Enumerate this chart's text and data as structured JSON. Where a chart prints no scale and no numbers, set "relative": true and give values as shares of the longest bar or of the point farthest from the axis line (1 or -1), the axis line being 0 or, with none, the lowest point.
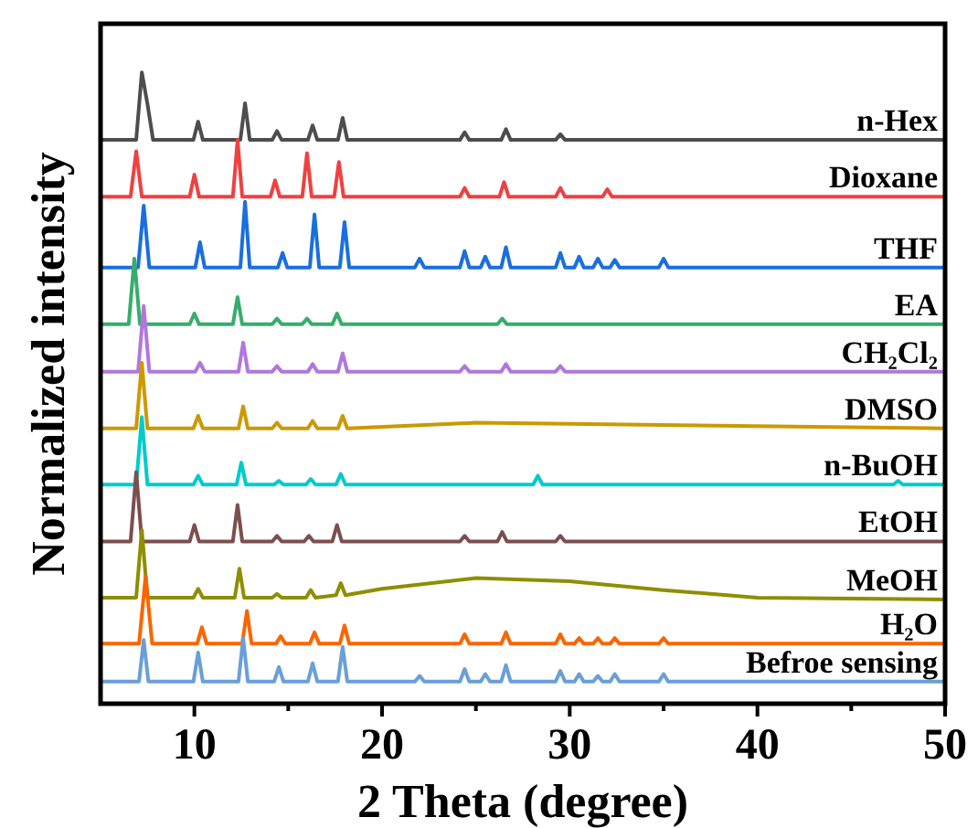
{
  "chart_data": {
    "type": "line",
    "relative": true,
    "xlabel": "2 Theta (degree)",
    "ylabel": "Normalized intensity",
    "xlim": [
      5,
      50
    ],
    "xticks": [
      10,
      {
        "value": 15,
        "label": null
      },
      20,
      {
        "value": 25,
        "label": null
      },
      30,
      {
        "value": 35,
        "label": null
      },
      40,
      {
        "value": 45,
        "label": null
      },
      50
    ],
    "series": [
      {
        "name": "n-Hex",
        "color": "#4d4d4d",
        "x": [
          5,
          6.9,
          7.2,
          7.5,
          7.8,
          9.95,
          10.2,
          10.45,
          12.45,
          12.7,
          12.95,
          14.15,
          14.4,
          14.65,
          16.05,
          16.3,
          16.55,
          17.65,
          17.9,
          18.15,
          24.15,
          24.4,
          24.65,
          26.35,
          26.6,
          26.85,
          29.25,
          29.5,
          29.75,
          50
        ],
        "values": [
          0.893,
          0.893,
          1,
          0.95,
          0.893,
          0.893,
          0.922,
          0.893,
          0.893,
          0.951,
          0.893,
          0.893,
          0.907,
          0.893,
          0.893,
          0.916,
          0.893,
          0.893,
          0.928,
          0.893,
          0.893,
          0.905,
          0.893,
          0.893,
          0.91,
          0.893,
          0.893,
          0.902,
          0.893,
          0.893
        ]
      },
      {
        "name": "Dioxane",
        "color": "#f04040",
        "x": [
          5,
          6.6,
          6.9,
          7.2,
          9.75,
          10,
          10.25,
          12.05,
          12.3,
          12.55,
          14.05,
          14.3,
          14.55,
          15.75,
          16,
          16.25,
          17.45,
          17.7,
          17.95,
          24.15,
          24.4,
          24.65,
          26.25,
          26.5,
          26.75,
          29.25,
          29.5,
          29.75,
          31.75,
          32,
          32.25,
          50
        ],
        "values": [
          0.803,
          0.803,
          0.875,
          0.803,
          0.803,
          0.838,
          0.803,
          0.803,
          0.893,
          0.803,
          0.803,
          0.829,
          0.803,
          0.803,
          0.872,
          0.803,
          0.803,
          0.858,
          0.803,
          0.803,
          0.817,
          0.803,
          0.803,
          0.826,
          0.803,
          0.803,
          0.817,
          0.803,
          0.803,
          0.815,
          0.803,
          0.803
        ]
      },
      {
        "name": "THF",
        "color": "#1a6fdf",
        "x": [
          5,
          7.0,
          7.3,
          7.6,
          10.05,
          10.3,
          10.55,
          12.45,
          12.7,
          12.95,
          14.45,
          14.7,
          14.95,
          16.15,
          16.4,
          16.65,
          17.75,
          18,
          18.25,
          21.75,
          22,
          22.25,
          24.15,
          24.4,
          24.65,
          25.25,
          25.5,
          25.75,
          26.35,
          26.6,
          26.85,
          29.25,
          29.5,
          29.75,
          30.25,
          30.5,
          30.75,
          31.25,
          31.5,
          31.75,
          32.15,
          32.4,
          32.65,
          34.75,
          35,
          35.25,
          50
        ],
        "values": [
          0.691,
          0.691,
          0.789,
          0.691,
          0.691,
          0.731,
          0.691,
          0.691,
          0.795,
          0.691,
          0.691,
          0.714,
          0.691,
          0.691,
          0.775,
          0.691,
          0.691,
          0.763,
          0.691,
          0.691,
          0.705,
          0.691,
          0.691,
          0.717,
          0.691,
          0.691,
          0.708,
          0.691,
          0.691,
          0.723,
          0.691,
          0.691,
          0.714,
          0.691,
          0.691,
          0.708,
          0.691,
          0.691,
          0.705,
          0.691,
          0.691,
          0.703,
          0.691,
          0.691,
          0.705,
          0.691,
          0.691
        ]
      },
      {
        "name": "EA",
        "color": "#37ad6b",
        "x": [
          5,
          6.5,
          6.8,
          7.1,
          9.75,
          10,
          10.25,
          12.05,
          12.3,
          12.55,
          14.15,
          14.4,
          14.65,
          15.75,
          16,
          16.25,
          17.35,
          17.6,
          17.85,
          26.15,
          26.4,
          26.65,
          50
        ],
        "values": [
          0.601,
          0.601,
          0.705,
          0.601,
          0.601,
          0.618,
          0.601,
          0.601,
          0.644,
          0.601,
          0.601,
          0.61,
          0.601,
          0.601,
          0.61,
          0.601,
          0.601,
          0.618,
          0.601,
          0.601,
          0.61,
          0.601,
          0.601
        ]
      },
      {
        "name": "CH₂Cl₂",
        "color": "#b177de",
        "x": [
          5,
          7.0,
          7.3,
          7.6,
          10.05,
          10.3,
          10.55,
          12.35,
          12.6,
          12.85,
          14.15,
          14.4,
          14.65,
          16.05,
          16.3,
          16.55,
          17.65,
          17.9,
          18.15,
          24.15,
          24.4,
          24.65,
          26.35,
          26.6,
          26.85,
          29.25,
          29.5,
          29.75,
          50
        ],
        "values": [
          0.526,
          0.526,
          0.63,
          0.526,
          0.526,
          0.54,
          0.526,
          0.526,
          0.572,
          0.526,
          0.526,
          0.535,
          0.526,
          0.526,
          0.538,
          0.526,
          0.526,
          0.555,
          0.526,
          0.526,
          0.535,
          0.526,
          0.526,
          0.538,
          0.526,
          0.526,
          0.535,
          0.526,
          0.526
        ]
      },
      {
        "name": "DMSO",
        "color": "#cc9900",
        "x": [
          5,
          6.9,
          7.2,
          7.5,
          9.95,
          10.2,
          10.45,
          12.35,
          12.6,
          12.85,
          14.15,
          14.4,
          14.65,
          16.05,
          16.3,
          16.55,
          17.65,
          17.9,
          18.15,
          25,
          50
        ],
        "values": [
          0.436,
          0.436,
          0.54,
          0.436,
          0.436,
          0.456,
          0.436,
          0.436,
          0.471,
          0.436,
          0.436,
          0.445,
          0.436,
          0.436,
          0.448,
          0.436,
          0.436,
          0.456,
          0.436,
          0.445,
          0.436
        ]
      },
      {
        "name": "n-BuOH",
        "color": "#00cbcc",
        "x": [
          5,
          6.9,
          7.2,
          7.5,
          9.95,
          10.2,
          10.45,
          12.25,
          12.5,
          12.75,
          14.25,
          14.5,
          14.75,
          15.95,
          16.2,
          16.45,
          17.55,
          17.8,
          18.05,
          28.05,
          28.3,
          28.55,
          47.25,
          47.5,
          47.75,
          50
        ],
        "values": [
          0.347,
          0.347,
          0.454,
          0.347,
          0.347,
          0.361,
          0.347,
          0.347,
          0.382,
          0.347,
          0.347,
          0.353,
          0.347,
          0.347,
          0.356,
          0.347,
          0.347,
          0.364,
          0.347,
          0.347,
          0.361,
          0.347,
          0.347,
          0.353,
          0.347,
          0.347
        ]
      },
      {
        "name": "EtOH",
        "color": "#7d4e4e",
        "x": [
          5,
          6.6,
          6.9,
          7.2,
          9.75,
          10,
          10.25,
          12.05,
          12.3,
          12.55,
          14.15,
          14.4,
          14.65,
          15.85,
          16.1,
          16.35,
          17.35,
          17.6,
          17.85,
          24.15,
          24.4,
          24.65,
          26.15,
          26.4,
          26.65,
          29.25,
          29.5,
          29.75,
          50
        ],
        "values": [
          0.257,
          0.257,
          0.367,
          0.257,
          0.257,
          0.283,
          0.257,
          0.257,
          0.315,
          0.257,
          0.257,
          0.266,
          0.257,
          0.257,
          0.266,
          0.257,
          0.257,
          0.283,
          0.257,
          0.257,
          0.266,
          0.257,
          0.257,
          0.272,
          0.257,
          0.257,
          0.266,
          0.257,
          0.257
        ]
      },
      {
        "name": "MeOH",
        "color": "#8e8e00",
        "x": [
          5,
          6.9,
          7.2,
          7.5,
          9.95,
          10.2,
          10.45,
          12.15,
          12.4,
          12.65,
          14.15,
          14.4,
          14.65,
          15.95,
          16.2,
          16.45,
          17.55,
          17.8,
          18.05,
          20,
          25,
          30,
          35,
          40,
          50
        ],
        "values": [
          0.168,
          0.168,
          0.275,
          0.168,
          0.168,
          0.182,
          0.168,
          0.168,
          0.214,
          0.168,
          0.168,
          0.174,
          0.168,
          0.168,
          0.18,
          0.168,
          0.172,
          0.191,
          0.172,
          0.182,
          0.199,
          0.194,
          0.18,
          0.168,
          0.165
        ]
      },
      {
        "name": "H₂O",
        "color": "#fb6500",
        "x": [
          5,
          7.05,
          7.4,
          7.75,
          10.15,
          10.4,
          10.65,
          12.55,
          12.8,
          13.05,
          14.35,
          14.6,
          14.85,
          16.15,
          16.4,
          16.65,
          17.75,
          18,
          18.25,
          24.15,
          24.4,
          24.65,
          26.35,
          26.6,
          26.85,
          29.25,
          29.5,
          29.75,
          30.25,
          30.5,
          30.75,
          31.25,
          31.5,
          31.75,
          32.15,
          32.4,
          32.65,
          34.75,
          35,
          35.25,
          50
        ],
        "values": [
          0.095,
          0.095,
          0.202,
          0.095,
          0.095,
          0.121,
          0.095,
          0.095,
          0.147,
          0.095,
          0.095,
          0.107,
          0.095,
          0.095,
          0.113,
          0.095,
          0.095,
          0.124,
          0.095,
          0.095,
          0.11,
          0.095,
          0.095,
          0.113,
          0.095,
          0.095,
          0.11,
          0.095,
          0.095,
          0.104,
          0.095,
          0.095,
          0.104,
          0.095,
          0.095,
          0.104,
          0.095,
          0.095,
          0.104,
          0.095,
          0.095
        ]
      },
      {
        "name": "Befroe sensing",
        "color": "#6a9fd8",
        "x": [
          5,
          7.05,
          7.3,
          7.55,
          9.95,
          10.2,
          10.45,
          12.35,
          12.6,
          12.85,
          14.25,
          14.5,
          14.75,
          16.05,
          16.3,
          16.55,
          17.65,
          17.9,
          18.15,
          21.75,
          22,
          22.25,
          24.15,
          24.4,
          24.65,
          25.25,
          25.5,
          25.75,
          26.35,
          26.6,
          26.85,
          29.25,
          29.5,
          29.75,
          30.25,
          30.5,
          30.75,
          31.25,
          31.5,
          31.75,
          32.15,
          32.4,
          32.65,
          34.75,
          35,
          35.25,
          50
        ],
        "values": [
          0.035,
          0.035,
          0.101,
          0.035,
          0.035,
          0.081,
          0.035,
          0.035,
          0.104,
          0.035,
          0.035,
          0.058,
          0.035,
          0.035,
          0.064,
          0.035,
          0.035,
          0.09,
          0.035,
          0.035,
          0.044,
          0.035,
          0.035,
          0.055,
          0.035,
          0.035,
          0.047,
          0.035,
          0.035,
          0.061,
          0.035,
          0.035,
          0.052,
          0.035,
          0.035,
          0.047,
          0.035,
          0.035,
          0.044,
          0.035,
          0.035,
          0.047,
          0.035,
          0.035,
          0.047,
          0.035,
          0.035
        ]
      }
    ]
  }
}
